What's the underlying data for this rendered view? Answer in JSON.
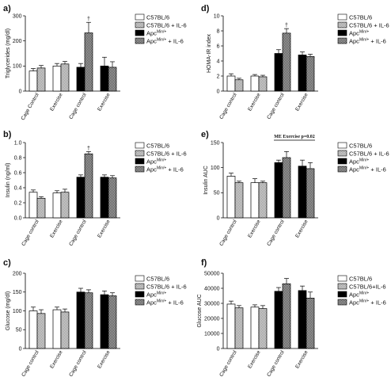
{
  "colors": {
    "white_fill": "#ffffff",
    "control_fill": "#bdbdbd",
    "black_fill": "#000000",
    "il6_mutant_fill": "#9e9e9e",
    "outline": "#000000"
  },
  "legend": {
    "c57": "C57BL/6",
    "c57_il6": "C57BL/6 + IL-6",
    "c57_il6_alt": "C57BL/6+IL-6",
    "apc_base": "Apc",
    "apc_sup": "Min/+",
    "apc_il6_suffix": " + IL-6"
  },
  "chart_data": [
    {
      "type": "bar",
      "panel_label": "a)",
      "ylabel": "Triglycerides (mg/dl)",
      "ylim": [
        0,
        300
      ],
      "yticks": [
        "0",
        "100",
        "200",
        "300"
      ],
      "categories": [
        "Cage Control",
        "Exercise",
        "Cage control",
        "Exercise"
      ],
      "series": [
        {
          "values": [
            80,
            100,
            95,
            100
          ],
          "errors": [
            10,
            10,
            15,
            35
          ]
        },
        {
          "values": [
            92,
            108,
            232,
            95
          ],
          "errors": [
            10,
            10,
            42,
            22
          ]
        }
      ],
      "annotations": [
        {
          "text": "†",
          "group": 2,
          "bar": 1
        }
      ]
    },
    {
      "type": "bar",
      "panel_label": "d)",
      "ylabel": "HOMA-IR index",
      "ylim": [
        0,
        10
      ],
      "yticks": [
        "0",
        "2",
        "4",
        "6",
        "8",
        "10"
      ],
      "categories": [
        "Cage control",
        "Exercise",
        "Cage control",
        "Exercise"
      ],
      "series": [
        {
          "values": [
            2.0,
            2.0,
            5.0,
            4.8
          ],
          "errors": [
            0.3,
            0.2,
            0.5,
            0.4
          ]
        },
        {
          "values": [
            1.5,
            1.9,
            7.7,
            4.6
          ],
          "errors": [
            0.2,
            0.2,
            0.6,
            0.3
          ]
        }
      ],
      "annotations": [
        {
          "text": "†",
          "group": 2,
          "bar": 1
        }
      ]
    },
    {
      "type": "bar",
      "panel_label": "b)",
      "ylabel": "Insulin (ng/ml)",
      "ylim": [
        0,
        1.0
      ],
      "yticks": [
        "0.0",
        "0.2",
        "0.4",
        "0.6",
        "0.8",
        "1.0"
      ],
      "categories": [
        "Cage control",
        "Exercise",
        "Cage control",
        "Exercise"
      ],
      "series": [
        {
          "values": [
            0.34,
            0.33,
            0.54,
            0.54
          ],
          "errors": [
            0.03,
            0.03,
            0.03,
            0.03
          ]
        },
        {
          "values": [
            0.26,
            0.34,
            0.85,
            0.53
          ],
          "errors": [
            0.02,
            0.04,
            0.03,
            0.03
          ]
        }
      ],
      "annotations": [
        {
          "text": "†",
          "group": 2,
          "bar": 1
        }
      ]
    },
    {
      "type": "bar",
      "panel_label": "e)",
      "ylabel": "Insulin AUC",
      "ylim": [
        0,
        150
      ],
      "yticks": [
        "0",
        "50",
        "100",
        "150"
      ],
      "categories": [
        "Cage control",
        "Exercise",
        "Cage control",
        "Exercise"
      ],
      "series": [
        {
          "values": [
            83,
            70,
            110,
            103
          ],
          "errors": [
            6,
            8,
            5,
            12
          ]
        },
        {
          "values": [
            70,
            70,
            120,
            98
          ],
          "errors": [
            3,
            3,
            12,
            12
          ]
        }
      ],
      "annotations": [
        {
          "text": "ME Exercise p=0.02",
          "type": "bracket"
        }
      ]
    },
    {
      "type": "bar",
      "panel_label": "c)",
      "ylabel": "Glucose (mg/dl)",
      "ylim": [
        0,
        200
      ],
      "yticks": [
        "0",
        "50",
        "100",
        "150",
        "200"
      ],
      "categories": [
        "Cage control",
        "Exercise",
        "Cage control",
        "Exercise"
      ],
      "series": [
        {
          "values": [
            100,
            103,
            150,
            143
          ],
          "errors": [
            10,
            7,
            10,
            10
          ]
        },
        {
          "values": [
            93,
            97,
            148,
            140
          ],
          "errors": [
            10,
            8,
            8,
            8
          ]
        }
      ],
      "annotations": []
    },
    {
      "type": "bar",
      "panel_label": "f)",
      "ylabel": "Glucose AUC",
      "ylim": [
        0,
        50000
      ],
      "yticks": [
        "0",
        "10000",
        "20000",
        "30000",
        "40000",
        "50000"
      ],
      "categories": [
        "Cage control",
        "Exercise",
        "Cage control",
        "Exercise"
      ],
      "series": [
        {
          "values": [
            29500,
            27500,
            38000,
            38500
          ],
          "errors": [
            2000,
            1500,
            2500,
            3000
          ]
        },
        {
          "values": [
            27000,
            26500,
            43000,
            33500
          ],
          "errors": [
            1500,
            2000,
            3500,
            4000
          ]
        }
      ],
      "annotations": []
    }
  ]
}
